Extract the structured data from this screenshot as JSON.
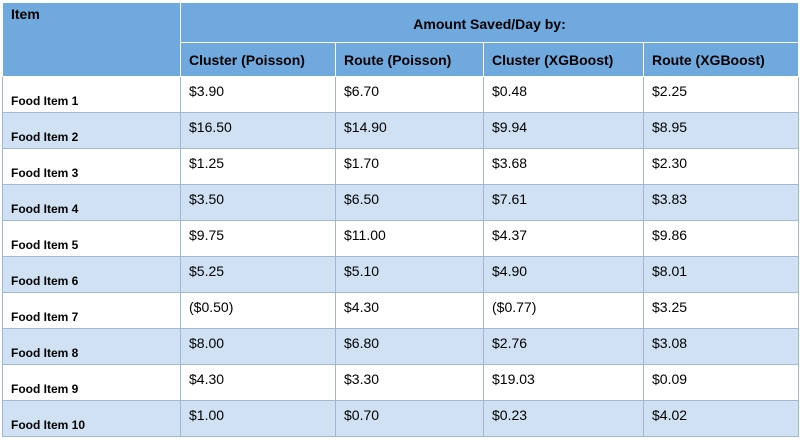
{
  "table": {
    "item_header": "Item",
    "group_header": "Amount Saved/Day by:",
    "columns": [
      "Cluster (Poisson)",
      "Route (Poisson)",
      "Cluster (XGBoost)",
      "Route (XGBoost)"
    ],
    "rows": [
      {
        "item": "Food Item 1",
        "values": [
          "$3.90",
          "$6.70",
          "$0.48",
          "$2.25"
        ]
      },
      {
        "item": "Food Item 2",
        "values": [
          "$16.50",
          "$14.90",
          "$9.94",
          "$8.95"
        ]
      },
      {
        "item": "Food Item 3",
        "values": [
          "$1.25",
          "$1.70",
          "$3.68",
          "$2.30"
        ]
      },
      {
        "item": "Food Item 4",
        "values": [
          "$3.50",
          "$6.50",
          "$7.61",
          "$3.83"
        ]
      },
      {
        "item": "Food Item 5",
        "values": [
          "$9.75",
          "$11.00",
          "$4.37",
          "$9.86"
        ]
      },
      {
        "item": "Food Item 6",
        "values": [
          "$5.25",
          "$5.10",
          "$4.90",
          "$8.01"
        ]
      },
      {
        "item": "Food Item 7",
        "values": [
          "($0.50)",
          "$4.30",
          "($0.77)",
          "$3.25"
        ]
      },
      {
        "item": "Food Item 8",
        "values": [
          "$8.00",
          "$6.80",
          "$2.76",
          "$3.08"
        ]
      },
      {
        "item": "Food Item 9",
        "values": [
          "$4.30",
          "$3.30",
          "$19.03",
          "$0.09"
        ]
      },
      {
        "item": "Food Item 10",
        "values": [
          "$1.00",
          "$0.70",
          "$0.23",
          "$4.02"
        ]
      }
    ]
  },
  "colors": {
    "header_bg": "#70a9de",
    "row_alt_bg": "#cfe1f3",
    "row_bg": "#ffffff"
  }
}
